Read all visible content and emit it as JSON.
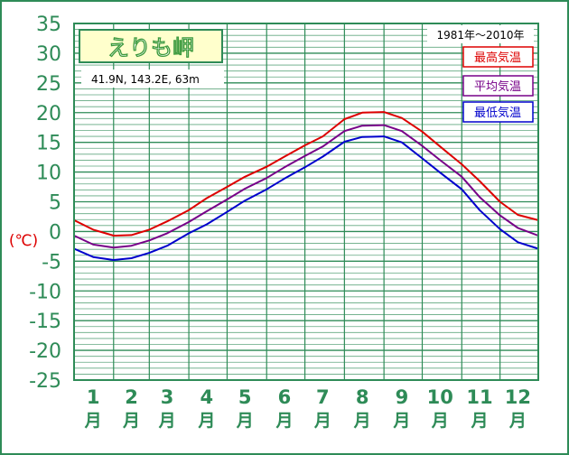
{
  "chart_data": {
    "type": "line",
    "title": "えりも岬",
    "location": "41.9N,  143.2E,  63m",
    "period": "1981年〜2010年",
    "ylabel": "(℃)",
    "ylim": [
      -25,
      35
    ],
    "yticks": [
      35,
      30,
      25,
      20,
      15,
      10,
      5,
      0,
      -5,
      -10,
      -15,
      -20,
      -25
    ],
    "categories": [
      {
        "num": "1",
        "unit": "月"
      },
      {
        "num": "2",
        "unit": "月"
      },
      {
        "num": "3",
        "unit": "月"
      },
      {
        "num": "4",
        "unit": "月"
      },
      {
        "num": "5",
        "unit": "月"
      },
      {
        "num": "6",
        "unit": "月"
      },
      {
        "num": "7",
        "unit": "月"
      },
      {
        "num": "8",
        "unit": "月"
      },
      {
        "num": "9",
        "unit": "月"
      },
      {
        "num": "10",
        "unit": "月"
      },
      {
        "num": "11",
        "unit": "月"
      },
      {
        "num": "12",
        "unit": "月"
      }
    ],
    "grid": true,
    "legend_position": "top-right",
    "x_day_range": [
      1,
      365
    ],
    "series": [
      {
        "name": "最高気温",
        "color": "#dd0000",
        "x": [
          1,
          16,
          32,
          46,
          60,
          74,
          91,
          105,
          121,
          135,
          152,
          166,
          182,
          196,
          213,
          227,
          244,
          258,
          274,
          288,
          305,
          319,
          335,
          349,
          365
        ],
        "y": [
          1.9,
          0.3,
          -0.7,
          -0.6,
          0.3,
          1.7,
          3.6,
          5.6,
          7.5,
          9.2,
          10.9,
          12.6,
          14.5,
          16.0,
          18.9,
          20.0,
          20.1,
          19.1,
          16.8,
          14.3,
          11.3,
          8.5,
          5.0,
          2.8,
          1.9
        ]
      },
      {
        "name": "平均気温",
        "color": "#770088",
        "x": [
          1,
          16,
          32,
          46,
          60,
          74,
          91,
          105,
          121,
          135,
          152,
          166,
          182,
          196,
          213,
          227,
          244,
          258,
          274,
          288,
          305,
          319,
          335,
          349,
          365
        ],
        "y": [
          -0.7,
          -2.2,
          -2.7,
          -2.4,
          -1.5,
          -0.3,
          1.6,
          3.4,
          5.4,
          7.2,
          9.0,
          10.8,
          12.7,
          14.3,
          16.9,
          17.8,
          17.9,
          16.9,
          14.4,
          12.0,
          9.2,
          5.8,
          2.7,
          0.6,
          -0.7
        ]
      },
      {
        "name": "最低気温",
        "color": "#0000cc",
        "x": [
          1,
          16,
          32,
          46,
          60,
          74,
          91,
          105,
          121,
          135,
          152,
          166,
          182,
          196,
          213,
          227,
          244,
          258,
          274,
          288,
          305,
          319,
          335,
          349,
          365
        ],
        "y": [
          -2.9,
          -4.3,
          -4.8,
          -4.5,
          -3.6,
          -2.4,
          -0.3,
          1.2,
          3.3,
          5.2,
          7.1,
          8.9,
          10.8,
          12.6,
          15.1,
          15.9,
          16.0,
          15.0,
          12.3,
          9.9,
          7.1,
          3.6,
          0.4,
          -1.8,
          -2.9
        ]
      }
    ]
  },
  "colors": {
    "frame": "#2e8b57",
    "grid": "#2e8b57",
    "tick_label": "#2e8b57",
    "ylabel": "#dd0000",
    "title_bg": "#ffffcc",
    "title_text": "#3c9a3c"
  }
}
